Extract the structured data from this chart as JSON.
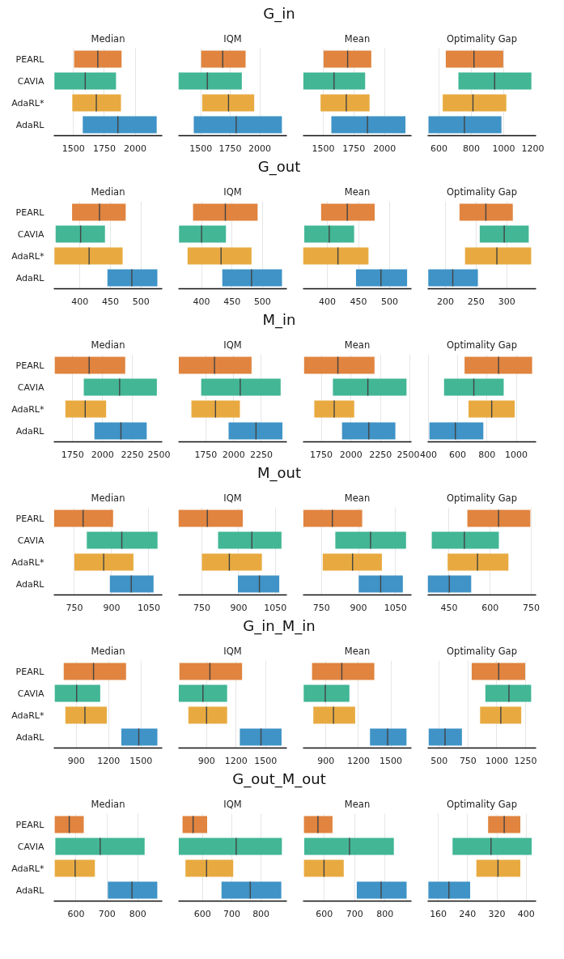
{
  "chart_data": [
    {
      "type": "box",
      "orientation": "horizontal",
      "title": "Median",
      "annotations": [
        "G_in"
      ],
      "categories": [
        "PEARL",
        "CAVIA",
        "AdaRL*",
        "AdaRL"
      ],
      "colors": [
        "#e0843f",
        "#42b695",
        "#e8aa40",
        "#3f93c6"
      ],
      "xlim": [
        1340,
        2220
      ],
      "xticks": [
        1500,
        1750,
        2000
      ],
      "grid": "x",
      "boxes": [
        {
          "low": 1505,
          "q1": 1505,
          "median": 1697,
          "q3": 1890,
          "high": 1890
        },
        {
          "low": 1345,
          "q1": 1345,
          "median": 1595,
          "q3": 1845,
          "high": 1845
        },
        {
          "low": 1490,
          "q1": 1490,
          "median": 1685,
          "q3": 1885,
          "high": 1885
        },
        {
          "low": 1575,
          "q1": 1575,
          "median": 1860,
          "q3": 2175,
          "high": 2175
        }
      ]
    },
    {
      "type": "box",
      "orientation": "horizontal",
      "title": "IQM",
      "colors": [
        "#e0843f",
        "#42b695",
        "#e8aa40",
        "#3f93c6"
      ],
      "xlim": [
        1310,
        2230
      ],
      "xticks": [
        1500,
        1750,
        2000
      ],
      "grid": "x",
      "tick_labels": "x",
      "boxes": [
        {
          "low": 1503,
          "q1": 1503,
          "median": 1686,
          "q3": 1880,
          "high": 1880
        },
        {
          "low": 1310,
          "q1": 1310,
          "median": 1555,
          "q3": 1848,
          "high": 1848
        },
        {
          "low": 1512,
          "q1": 1512,
          "median": 1735,
          "q3": 1953,
          "high": 1953
        },
        {
          "low": 1440,
          "q1": 1440,
          "median": 1800,
          "q3": 2188,
          "high": 2188
        }
      ]
    },
    {
      "type": "box",
      "orientation": "horizontal",
      "title": "Mean",
      "colors": [
        "#e0843f",
        "#42b695",
        "#e8aa40",
        "#3f93c6"
      ],
      "xlim": [
        1335,
        2220
      ],
      "xticks": [
        1500,
        1750,
        2000
      ],
      "grid": "x",
      "tick_labels": "x",
      "boxes": [
        {
          "low": 1503,
          "q1": 1503,
          "median": 1699,
          "q3": 1892,
          "high": 1892
        },
        {
          "low": 1337,
          "q1": 1337,
          "median": 1588,
          "q3": 1842,
          "high": 1842
        },
        {
          "low": 1478,
          "q1": 1478,
          "median": 1688,
          "q3": 1878,
          "high": 1878
        },
        {
          "low": 1566,
          "q1": 1566,
          "median": 1861,
          "q3": 2171,
          "high": 2171
        }
      ]
    },
    {
      "type": "box",
      "orientation": "horizontal",
      "title": "Optimality Gap",
      "colors": [
        "#e0843f",
        "#42b695",
        "#e8aa40",
        "#3f93c6"
      ],
      "xlim": [
        530,
        1200
      ],
      "xticks": [
        600,
        800,
        1000,
        1200
      ],
      "grid": "x",
      "tick_labels": "x",
      "boxes": [
        {
          "low": 642,
          "q1": 642,
          "median": 816,
          "q3": 997,
          "high": 997
        },
        {
          "low": 720,
          "q1": 720,
          "median": 944,
          "q3": 1171,
          "high": 1171
        },
        {
          "low": 623,
          "q1": 623,
          "median": 810,
          "q3": 1016,
          "high": 1016
        },
        {
          "low": 535,
          "q1": 535,
          "median": 757,
          "q3": 986,
          "high": 986
        }
      ]
    },
    {
      "type": "box",
      "orientation": "horizontal",
      "title": "Median",
      "annotations": [
        "G_out"
      ],
      "categories": [
        "PEARL",
        "CAVIA",
        "AdaRL*",
        "AdaRL"
      ],
      "colors": [
        "#e0843f",
        "#42b695",
        "#e8aa40",
        "#3f93c6"
      ],
      "xlim": [
        357,
        535
      ],
      "xticks": [
        400,
        450,
        500
      ],
      "grid": "x",
      "boxes": [
        {
          "low": 387,
          "q1": 387,
          "median": 432,
          "q3": 475,
          "high": 475
        },
        {
          "low": 360,
          "q1": 360,
          "median": 401,
          "q3": 441,
          "high": 441
        },
        {
          "low": 358,
          "q1": 358,
          "median": 415,
          "q3": 470,
          "high": 470
        },
        {
          "low": 445,
          "q1": 445,
          "median": 485,
          "q3": 527,
          "high": 527
        }
      ]
    },
    {
      "type": "box",
      "orientation": "horizontal",
      "title": "IQM",
      "colors": [
        "#e0843f",
        "#42b695",
        "#e8aa40",
        "#3f93c6"
      ],
      "xlim": [
        362,
        540
      ],
      "xticks": [
        400,
        450,
        500
      ],
      "grid": "x",
      "tick_labels": "x",
      "boxes": [
        {
          "low": 386,
          "q1": 386,
          "median": 439,
          "q3": 492,
          "high": 492
        },
        {
          "low": 363,
          "q1": 363,
          "median": 400,
          "q3": 440,
          "high": 440
        },
        {
          "low": 377,
          "q1": 377,
          "median": 432,
          "q3": 482,
          "high": 482
        },
        {
          "low": 434,
          "q1": 434,
          "median": 482,
          "q3": 532,
          "high": 532
        }
      ]
    },
    {
      "type": "box",
      "orientation": "horizontal",
      "title": "Mean",
      "colors": [
        "#e0843f",
        "#42b695",
        "#e8aa40",
        "#3f93c6"
      ],
      "xlim": [
        361,
        535
      ],
      "xticks": [
        400,
        450,
        500
      ],
      "grid": "x",
      "tick_labels": "x",
      "boxes": [
        {
          "low": 390,
          "q1": 390,
          "median": 432,
          "q3": 476,
          "high": 476
        },
        {
          "low": 363,
          "q1": 363,
          "median": 403,
          "q3": 443,
          "high": 443
        },
        {
          "low": 361,
          "q1": 361,
          "median": 417,
          "q3": 466,
          "high": 466
        },
        {
          "low": 446,
          "q1": 446,
          "median": 486,
          "q3": 528,
          "high": 528
        }
      ]
    },
    {
      "type": "box",
      "orientation": "horizontal",
      "title": "Optimality Gap",
      "colors": [
        "#e0843f",
        "#42b695",
        "#e8aa40",
        "#3f93c6"
      ],
      "xlim": [
        171,
        348
      ],
      "xticks": [
        200,
        250,
        300
      ],
      "grid": "x",
      "tick_labels": "x",
      "boxes": [
        {
          "low": 223,
          "q1": 223,
          "median": 266,
          "q3": 310,
          "high": 310
        },
        {
          "low": 256,
          "q1": 256,
          "median": 296,
          "q3": 336,
          "high": 336
        },
        {
          "low": 232,
          "q1": 232,
          "median": 284,
          "q3": 340,
          "high": 340
        },
        {
          "low": 172,
          "q1": 172,
          "median": 212,
          "q3": 253,
          "high": 253
        }
      ]
    },
    {
      "type": "box",
      "orientation": "horizontal",
      "title": "Median",
      "annotations": [
        "M_in"
      ],
      "categories": [
        "PEARL",
        "CAVIA",
        "AdaRL*",
        "AdaRL"
      ],
      "colors": [
        "#e0843f",
        "#42b695",
        "#e8aa40",
        "#3f93c6"
      ],
      "xlim": [
        1592,
        2500
      ],
      "xticks": [
        1750,
        2000,
        2250,
        2500
      ],
      "grid": "x",
      "boxes": [
        {
          "low": 1600,
          "q1": 1600,
          "median": 1888,
          "q3": 2190,
          "high": 2190
        },
        {
          "low": 1843,
          "q1": 1843,
          "median": 2143,
          "q3": 2455,
          "high": 2455
        },
        {
          "low": 1689,
          "q1": 1689,
          "median": 1855,
          "q3": 2030,
          "high": 2030
        },
        {
          "low": 1932,
          "q1": 1932,
          "median": 2154,
          "q3": 2370,
          "high": 2370
        }
      ]
    },
    {
      "type": "box",
      "orientation": "horizontal",
      "title": "IQM",
      "colors": [
        "#e0843f",
        "#42b695",
        "#e8aa40",
        "#3f93c6"
      ],
      "xlim": [
        1503,
        2480
      ],
      "xticks": [
        1750,
        2000,
        2250
      ],
      "grid": "x",
      "tick_labels": "x",
      "boxes": [
        {
          "low": 1506,
          "q1": 1506,
          "median": 1828,
          "q3": 2162,
          "high": 2162
        },
        {
          "low": 1708,
          "q1": 1708,
          "median": 2060,
          "q3": 2424,
          "high": 2424
        },
        {
          "low": 1620,
          "q1": 1620,
          "median": 1837,
          "q3": 2057,
          "high": 2057
        },
        {
          "low": 1955,
          "q1": 1955,
          "median": 2202,
          "q3": 2440,
          "high": 2440
        }
      ]
    },
    {
      "type": "box",
      "orientation": "horizontal",
      "title": "Mean",
      "colors": [
        "#e0843f",
        "#42b695",
        "#e8aa40",
        "#3f93c6"
      ],
      "xlim": [
        1596,
        2511
      ],
      "xticks": [
        1750,
        2000,
        2250,
        2500
      ],
      "grid": "x",
      "tick_labels": "x",
      "boxes": [
        {
          "low": 1605,
          "q1": 1605,
          "median": 1890,
          "q3": 2199,
          "high": 2199
        },
        {
          "low": 1848,
          "q1": 1848,
          "median": 2143,
          "q3": 2469,
          "high": 2469
        },
        {
          "low": 1691,
          "q1": 1691,
          "median": 1859,
          "q3": 2028,
          "high": 2028
        },
        {
          "low": 1925,
          "q1": 1925,
          "median": 2151,
          "q3": 2375,
          "high": 2375
        }
      ]
    },
    {
      "type": "box",
      "orientation": "horizontal",
      "title": "Optimality Gap",
      "colors": [
        "#e0843f",
        "#42b695",
        "#e8aa40",
        "#3f93c6"
      ],
      "xlim": [
        395,
        1135
      ],
      "xticks": [
        400,
        600,
        800,
        1000
      ],
      "grid": "x",
      "tick_labels": "x",
      "boxes": [
        {
          "low": 647,
          "q1": 647,
          "median": 879,
          "q3": 1108,
          "high": 1108
        },
        {
          "low": 507,
          "q1": 507,
          "median": 710,
          "q3": 914,
          "high": 914
        },
        {
          "low": 674,
          "q1": 674,
          "median": 832,
          "q3": 989,
          "high": 989
        },
        {
          "low": 407,
          "q1": 407,
          "median": 584,
          "q3": 775,
          "high": 775
        }
      ]
    },
    {
      "type": "box",
      "orientation": "horizontal",
      "title": "Median",
      "annotations": [
        "M_out"
      ],
      "categories": [
        "PEARL",
        "CAVIA",
        "AdaRL*",
        "AdaRL"
      ],
      "colors": [
        "#e0843f",
        "#42b695",
        "#e8aa40",
        "#3f93c6"
      ],
      "xlim": [
        667,
        1104
      ],
      "xticks": [
        750,
        900,
        1050
      ],
      "grid": "x",
      "boxes": [
        {
          "low": 668,
          "q1": 668,
          "median": 785,
          "q3": 906,
          "high": 906
        },
        {
          "low": 800,
          "q1": 800,
          "median": 941,
          "q3": 1085,
          "high": 1085
        },
        {
          "low": 750,
          "q1": 750,
          "median": 868,
          "q3": 988,
          "high": 988
        },
        {
          "low": 893,
          "q1": 893,
          "median": 979,
          "q3": 1069,
          "high": 1069
        }
      ]
    },
    {
      "type": "box",
      "orientation": "horizontal",
      "title": "IQM",
      "colors": [
        "#e0843f",
        "#42b695",
        "#e8aa40",
        "#3f93c6"
      ],
      "xlim": [
        654,
        1097
      ],
      "xticks": [
        750,
        900,
        1050
      ],
      "grid": "x",
      "tick_labels": "x",
      "boxes": [
        {
          "low": 654,
          "q1": 654,
          "median": 772,
          "q3": 917,
          "high": 917
        },
        {
          "low": 816,
          "q1": 816,
          "median": 954,
          "q3": 1075,
          "high": 1075
        },
        {
          "low": 750,
          "q1": 750,
          "median": 862,
          "q3": 995,
          "high": 995
        },
        {
          "low": 897,
          "q1": 897,
          "median": 985,
          "q3": 1066,
          "high": 1066
        }
      ]
    },
    {
      "type": "box",
      "orientation": "horizontal",
      "title": "Mean",
      "colors": [
        "#e0843f",
        "#42b695",
        "#e8aa40",
        "#3f93c6"
      ],
      "xlim": [
        675,
        1115
      ],
      "xticks": [
        750,
        900,
        1050
      ],
      "grid": "x",
      "tick_labels": "x",
      "boxes": [
        {
          "low": 676,
          "q1": 676,
          "median": 794,
          "q3": 915,
          "high": 915
        },
        {
          "low": 806,
          "q1": 806,
          "median": 949,
          "q3": 1093,
          "high": 1093
        },
        {
          "low": 755,
          "q1": 755,
          "median": 876,
          "q3": 995,
          "high": 995
        },
        {
          "low": 901,
          "q1": 901,
          "median": 990,
          "q3": 1080,
          "high": 1080
        }
      ]
    },
    {
      "type": "box",
      "orientation": "horizontal",
      "title": "Optimality Gap",
      "colors": [
        "#e0843f",
        "#42b695",
        "#e8aa40",
        "#3f93c6"
      ],
      "xlim": [
        372,
        768
      ],
      "xticks": [
        450,
        600,
        750
      ],
      "grid": "x",
      "tick_labels": "x",
      "boxes": [
        {
          "low": 517,
          "q1": 517,
          "median": 631,
          "q3": 747,
          "high": 747
        },
        {
          "low": 387,
          "q1": 387,
          "median": 506,
          "q3": 632,
          "high": 632
        },
        {
          "low": 445,
          "q1": 445,
          "median": 554,
          "q3": 667,
          "high": 667
        },
        {
          "low": 372,
          "q1": 372,
          "median": 451,
          "q3": 531,
          "high": 531
        }
      ]
    },
    {
      "type": "box",
      "orientation": "horizontal",
      "title": "Median",
      "annotations": [
        "G_in_M_in"
      ],
      "categories": [
        "PEARL",
        "CAVIA",
        "AdaRL*",
        "AdaRL"
      ],
      "colors": [
        "#e0843f",
        "#42b695",
        "#e8aa40",
        "#3f93c6"
      ],
      "xlim": [
        691,
        1698
      ],
      "xticks": [
        900,
        1200,
        1500
      ],
      "grid": "x",
      "boxes": [
        {
          "low": 783,
          "q1": 783,
          "median": 1060,
          "q3": 1362,
          "high": 1362
        },
        {
          "low": 700,
          "q1": 700,
          "median": 903,
          "q3": 1122,
          "high": 1122
        },
        {
          "low": 798,
          "q1": 798,
          "median": 980,
          "q3": 1183,
          "high": 1183
        },
        {
          "low": 1318,
          "q1": 1318,
          "median": 1480,
          "q3": 1653,
          "high": 1653
        }
      ]
    },
    {
      "type": "box",
      "orientation": "horizontal",
      "title": "IQM",
      "colors": [
        "#e0843f",
        "#42b695",
        "#e8aa40",
        "#3f93c6"
      ],
      "xlim": [
        614,
        1716
      ],
      "xticks": [
        900,
        1200,
        1500
      ],
      "grid": "x",
      "tick_labels": "x",
      "boxes": [
        {
          "low": 624,
          "q1": 624,
          "median": 934,
          "q3": 1261,
          "high": 1261
        },
        {
          "low": 617,
          "q1": 617,
          "median": 863,
          "q3": 1109,
          "high": 1109
        },
        {
          "low": 715,
          "q1": 715,
          "median": 900,
          "q3": 1109,
          "high": 1109
        },
        {
          "low": 1238,
          "q1": 1238,
          "median": 1453,
          "q3": 1662,
          "high": 1662
        }
      ]
    },
    {
      "type": "box",
      "orientation": "horizontal",
      "title": "Mean",
      "colors": [
        "#e0843f",
        "#42b695",
        "#e8aa40",
        "#3f93c6"
      ],
      "xlim": [
        689,
        1690
      ],
      "xticks": [
        900,
        1200,
        1500
      ],
      "grid": "x",
      "tick_labels": "x",
      "boxes": [
        {
          "low": 772,
          "q1": 772,
          "median": 1047,
          "q3": 1347,
          "high": 1347
        },
        {
          "low": 695,
          "q1": 695,
          "median": 894,
          "q3": 1117,
          "high": 1117
        },
        {
          "low": 784,
          "q1": 784,
          "median": 970,
          "q3": 1170,
          "high": 1170
        },
        {
          "low": 1307,
          "q1": 1307,
          "median": 1470,
          "q3": 1644,
          "high": 1644
        }
      ]
    },
    {
      "type": "box",
      "orientation": "horizontal",
      "title": "Optimality Gap",
      "colors": [
        "#e0843f",
        "#42b695",
        "#e8aa40",
        "#3f93c6"
      ],
      "xlim": [
        399,
        1342
      ],
      "xticks": [
        500,
        750,
        1000,
        1250
      ],
      "grid": "x",
      "tick_labels": "x",
      "boxes": [
        {
          "low": 782,
          "q1": 782,
          "median": 1017,
          "q3": 1247,
          "high": 1247
        },
        {
          "low": 901,
          "q1": 901,
          "median": 1106,
          "q3": 1299,
          "high": 1299
        },
        {
          "low": 855,
          "q1": 855,
          "median": 1035,
          "q3": 1213,
          "high": 1213
        },
        {
          "low": 408,
          "q1": 408,
          "median": 550,
          "q3": 697,
          "high": 697
        }
      ]
    },
    {
      "type": "box",
      "orientation": "horizontal",
      "title": "Median",
      "annotations": [
        "G_out_M_out"
      ],
      "categories": [
        "PEARL",
        "CAVIA",
        "AdaRL*",
        "AdaRL"
      ],
      "colors": [
        "#e0843f",
        "#42b695",
        "#e8aa40",
        "#3f93c6"
      ],
      "xlim": [
        528,
        879
      ],
      "xticks": [
        600,
        700,
        800
      ],
      "grid": "x",
      "boxes": [
        {
          "low": 531,
          "q1": 531,
          "median": 578,
          "q3": 625,
          "high": 625
        },
        {
          "low": 533,
          "q1": 533,
          "median": 678,
          "q3": 822,
          "high": 822
        },
        {
          "low": 531,
          "q1": 531,
          "median": 597,
          "q3": 661,
          "high": 661
        },
        {
          "low": 703,
          "q1": 703,
          "median": 781,
          "q3": 863,
          "high": 863
        }
      ]
    },
    {
      "type": "box",
      "orientation": "horizontal",
      "title": "IQM",
      "colors": [
        "#e0843f",
        "#42b695",
        "#e8aa40",
        "#3f93c6"
      ],
      "xlim": [
        518,
        888
      ],
      "xticks": [
        600,
        700,
        800
      ],
      "grid": "x",
      "tick_labels": "x",
      "boxes": [
        {
          "low": 532,
          "q1": 532,
          "median": 568,
          "q3": 616,
          "high": 616
        },
        {
          "low": 519,
          "q1": 519,
          "median": 715,
          "q3": 871,
          "high": 871
        },
        {
          "low": 542,
          "q1": 542,
          "median": 614,
          "q3": 705,
          "high": 705
        },
        {
          "low": 665,
          "q1": 665,
          "median": 763,
          "q3": 869,
          "high": 869
        }
      ]
    },
    {
      "type": "box",
      "orientation": "horizontal",
      "title": "Mean",
      "colors": [
        "#e0843f",
        "#42b695",
        "#e8aa40",
        "#3f93c6"
      ],
      "xlim": [
        530,
        887
      ],
      "xticks": [
        600,
        700,
        800
      ],
      "grid": "x",
      "tick_labels": "x",
      "boxes": [
        {
          "low": 533,
          "q1": 533,
          "median": 579,
          "q3": 627,
          "high": 627
        },
        {
          "low": 534,
          "q1": 534,
          "median": 683,
          "q3": 829,
          "high": 829
        },
        {
          "low": 533,
          "q1": 533,
          "median": 599,
          "q3": 664,
          "high": 664
        },
        {
          "low": 707,
          "q1": 707,
          "median": 787,
          "q3": 871,
          "high": 871
        }
      ]
    },
    {
      "type": "box",
      "orientation": "horizontal",
      "title": "Optimality Gap",
      "colors": [
        "#e0843f",
        "#42b695",
        "#e8aa40",
        "#3f93c6"
      ],
      "xlim": [
        131,
        427
      ],
      "xticks": [
        160,
        240,
        320,
        400
      ],
      "grid": "x",
      "tick_labels": "x",
      "boxes": [
        {
          "low": 296,
          "q1": 296,
          "median": 340,
          "q3": 384,
          "high": 384
        },
        {
          "low": 199,
          "q1": 199,
          "median": 304,
          "q3": 415,
          "high": 415
        },
        {
          "low": 264,
          "q1": 264,
          "median": 323,
          "q3": 384,
          "high": 384
        },
        {
          "low": 133,
          "q1": 133,
          "median": 189,
          "q3": 247,
          "high": 247
        }
      ]
    }
  ]
}
